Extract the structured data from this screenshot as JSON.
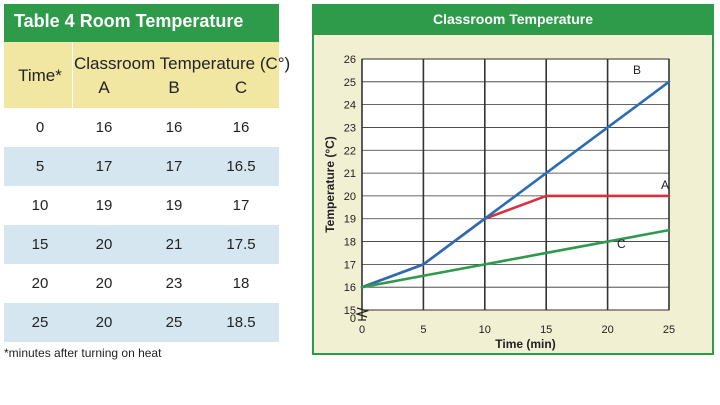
{
  "table": {
    "title": "Table 4  Room Temperature",
    "time_header": "Time*",
    "temp_header": "Classroom Temperature (C°)",
    "col_headers": [
      "A",
      "B",
      "C"
    ],
    "rows": [
      {
        "time": "0",
        "a": "16",
        "b": "16",
        "c": "16"
      },
      {
        "time": "5",
        "a": "17",
        "b": "17",
        "c": "16.5"
      },
      {
        "time": "10",
        "a": "19",
        "b": "19",
        "c": "17"
      },
      {
        "time": "15",
        "a": "20",
        "b": "21",
        "c": "17.5"
      },
      {
        "time": "20",
        "a": "20",
        "b": "23",
        "c": "18"
      },
      {
        "time": "25",
        "a": "20",
        "b": "25",
        "c": "18.5"
      }
    ],
    "footnote": "*minutes after turning on heat"
  },
  "chart_data": {
    "type": "line",
    "title": "Classroom Temperature",
    "xlabel": "Time (min)",
    "ylabel": "Temperature (°C)",
    "xlim": [
      0,
      25
    ],
    "ylim": [
      15,
      26
    ],
    "x_ticks": [
      0,
      5,
      10,
      15,
      20,
      25
    ],
    "y_ticks": [
      15,
      16,
      17,
      18,
      19,
      20,
      21,
      22,
      23,
      24,
      25,
      26
    ],
    "y_origin_label": "0",
    "grid": true,
    "x": [
      0,
      5,
      10,
      15,
      20,
      25
    ],
    "series": [
      {
        "name": "A",
        "color": "#d6313f",
        "values": [
          16,
          17,
          19,
          20,
          20,
          20
        ]
      },
      {
        "name": "B",
        "color": "#2a6db3",
        "values": [
          16,
          17,
          19,
          21,
          23,
          25
        ]
      },
      {
        "name": "C",
        "color": "#2f9a4c",
        "values": [
          16,
          16.5,
          17,
          17.5,
          18,
          18.5
        ]
      }
    ]
  }
}
